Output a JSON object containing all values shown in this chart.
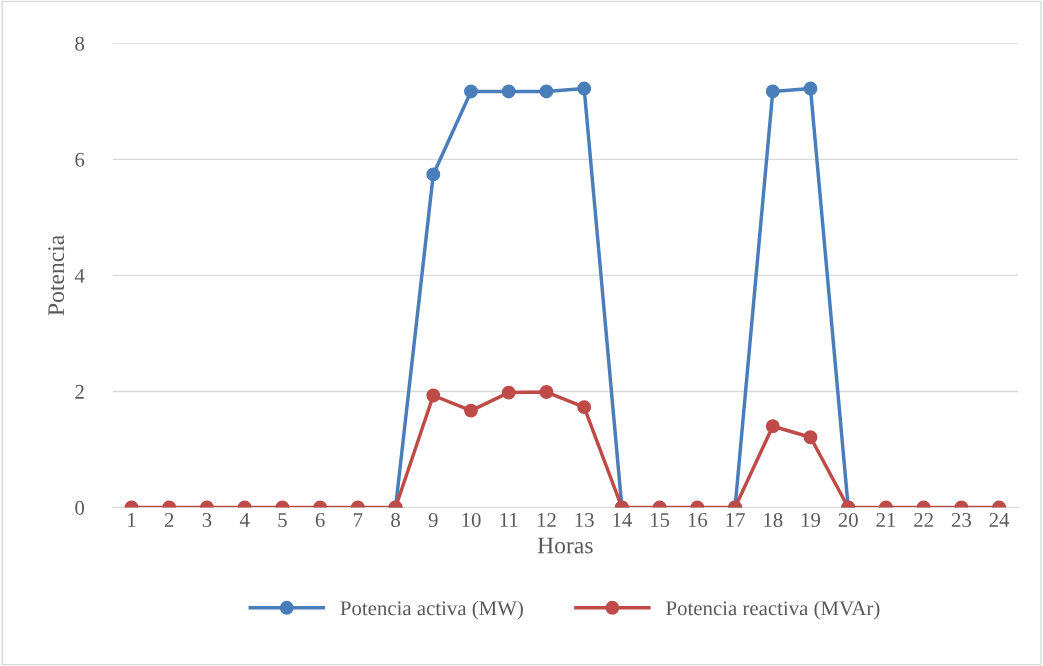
{
  "chart_data": {
    "type": "line",
    "xlabel": "Horas",
    "ylabel": "Potencia",
    "categories": [
      "1",
      "2",
      "3",
      "4",
      "5",
      "6",
      "7",
      "8",
      "9",
      "10",
      "11",
      "12",
      "13",
      "14",
      "15",
      "16",
      "17",
      "18",
      "19",
      "20",
      "21",
      "22",
      "23",
      "24"
    ],
    "series": [
      {
        "name": "Potencia activa (MW)",
        "color": "#4a7ebb",
        "values": [
          null,
          null,
          null,
          null,
          null,
          null,
          null,
          0,
          5.74,
          7.17,
          7.17,
          7.17,
          7.22,
          0,
          null,
          null,
          0,
          7.17,
          7.22,
          0,
          null,
          null,
          null,
          null
        ]
      },
      {
        "name": "Potencia reactiva (MVAr)",
        "color": "#be4b48",
        "values": [
          0,
          0,
          0,
          0,
          0,
          0,
          0,
          0,
          1.93,
          1.67,
          1.98,
          1.99,
          1.73,
          0,
          0,
          0,
          0,
          1.4,
          1.21,
          0,
          0,
          0,
          0,
          0
        ]
      }
    ],
    "ylim": [
      0,
      8
    ],
    "yticks": [
      0,
      2,
      4,
      6,
      8
    ],
    "grid": "y",
    "legend": "bottom",
    "marker": "circle",
    "line_style": "solid"
  }
}
